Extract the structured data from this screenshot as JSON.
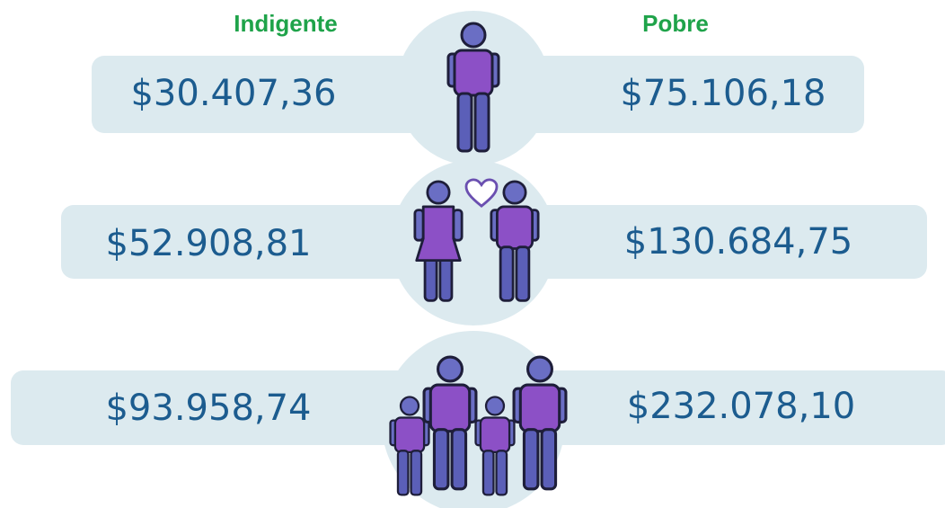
{
  "header": {
    "left": "Indigente",
    "right": "Pobre"
  },
  "rows": [
    {
      "left": "$30.407,36",
      "right": "$75.106,18"
    },
    {
      "left": "$52.908,81",
      "right": "$130.684,75"
    },
    {
      "left": "$93.958,74",
      "right": "$232.078,10"
    }
  ]
}
